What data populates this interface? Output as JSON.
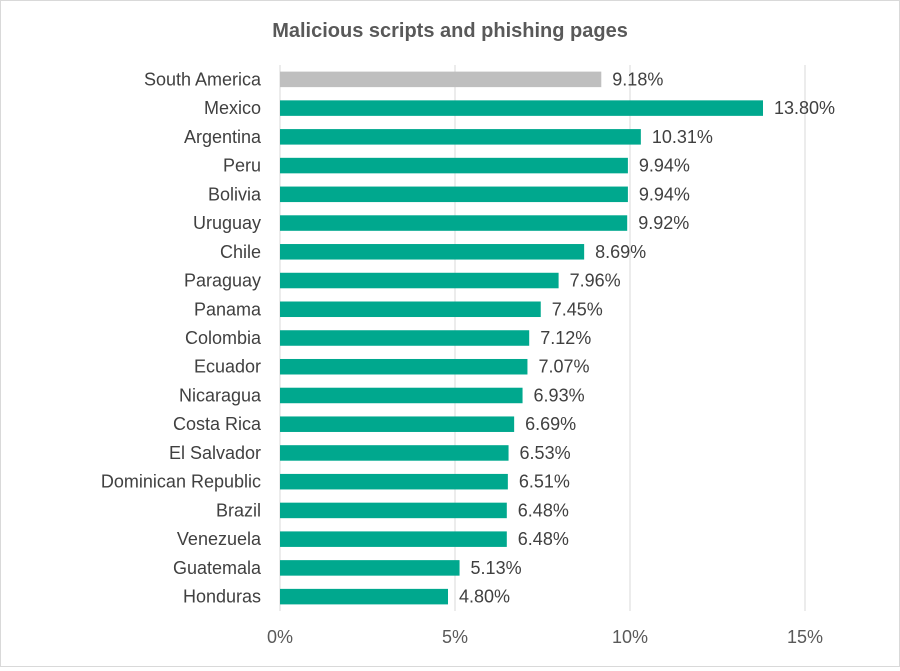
{
  "chart_data": {
    "type": "bar",
    "orientation": "horizontal",
    "title": "Malicious scripts and phishing pages",
    "categories": [
      "South America",
      "Mexico",
      "Argentina",
      "Peru",
      "Bolivia",
      "Uruguay",
      "Chile",
      "Paraguay",
      "Panama",
      "Colombia",
      "Ecuador",
      "Nicaragua",
      "Costa Rica",
      "El Salvador",
      "Dominican Republic",
      "Brazil",
      "Venezuela",
      "Guatemala",
      "Honduras"
    ],
    "values": [
      9.18,
      13.8,
      10.31,
      9.94,
      9.94,
      9.92,
      8.69,
      7.96,
      7.45,
      7.12,
      7.07,
      6.93,
      6.69,
      6.53,
      6.51,
      6.48,
      6.48,
      5.13,
      4.8
    ],
    "value_labels": [
      "9.18%",
      "13.80%",
      "10.31%",
      "9.94%",
      "9.94%",
      "9.92%",
      "8.69%",
      "7.96%",
      "7.45%",
      "7.12%",
      "7.07%",
      "6.93%",
      "6.69%",
      "6.53%",
      "6.51%",
      "6.48%",
      "6.48%",
      "5.13%",
      "4.80%"
    ],
    "x_ticks": [
      0,
      5,
      10,
      15
    ],
    "x_tick_labels": [
      "0%",
      "5%",
      "10%",
      "15%"
    ],
    "xlim": [
      0,
      15
    ],
    "grid": true,
    "colors": {
      "highlight": "#bfbfbf",
      "bar": "#00a88e",
      "grid": "#d9d9d9"
    },
    "highlight_index": 0
  }
}
